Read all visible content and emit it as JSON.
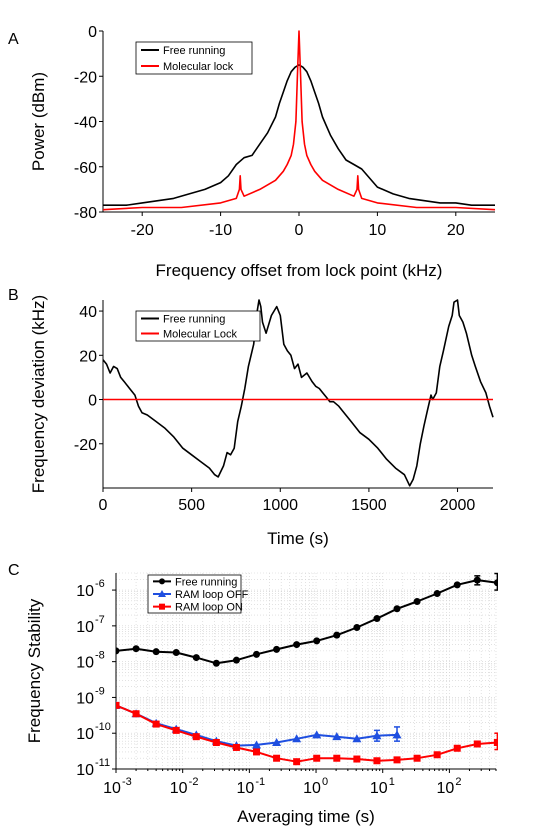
{
  "colors": {
    "free": "#000000",
    "lock": "#ff0000",
    "ram_off": "#1f4fe0",
    "ram_on": "#ff0000",
    "grid": "#d0d0d0"
  },
  "chart_data": [
    {
      "panel_label": "A",
      "type": "line",
      "xlabel": "Frequency offset from lock point (kHz)",
      "ylabel": "Power (dBm)",
      "xlim": [
        -25,
        25
      ],
      "ylim": [
        -80,
        0
      ],
      "xticks": [
        -20,
        -10,
        0,
        10,
        20
      ],
      "xtick_labels": [
        "-20",
        "-10",
        "0",
        "10",
        "20"
      ],
      "yticks": [
        0,
        -20,
        -40,
        -60,
        -80
      ],
      "ytick_labels": [
        "0",
        "-20",
        "-40",
        "-60",
        "-80"
      ],
      "legend": "top-left",
      "grid": false,
      "series": [
        {
          "name": "Free running",
          "color_key": "free",
          "x": [
            -25,
            -22,
            -20,
            -18,
            -16,
            -14,
            -12,
            -10,
            -9,
            -8,
            -7,
            -6,
            -5,
            -4,
            -3,
            -2.5,
            -2,
            -1.5,
            -1,
            -0.5,
            0,
            0.5,
            1,
            1.5,
            2,
            2.5,
            3,
            4,
            5,
            6,
            7,
            8,
            9,
            10,
            12,
            14,
            16,
            18,
            20,
            22,
            25
          ],
          "y": [
            -77,
            -77,
            -76,
            -75,
            -74,
            -72,
            -70,
            -67,
            -64,
            -59,
            -56,
            -55,
            -50,
            -45,
            -38,
            -32,
            -27,
            -22,
            -18,
            -16,
            -15,
            -16,
            -18,
            -22,
            -27,
            -32,
            -38,
            -46,
            -52,
            -57,
            -59,
            -61,
            -65,
            -69,
            -72,
            -74,
            -75,
            -76,
            -76,
            -77,
            -77
          ]
        },
        {
          "name": "Molecular lock",
          "color_key": "lock",
          "x": [
            -25,
            -20,
            -15,
            -10,
            -8,
            -7.6,
            -7.5,
            -7.4,
            -7,
            -5,
            -3,
            -2,
            -1.5,
            -1,
            -0.7,
            -0.4,
            -0.2,
            0,
            0.2,
            0.4,
            0.7,
            1,
            1.5,
            2,
            3,
            5,
            7,
            7.4,
            7.5,
            7.6,
            8,
            10,
            15,
            20,
            25
          ],
          "y": [
            -79,
            -78,
            -78,
            -76,
            -74,
            -70,
            -64,
            -70,
            -73,
            -70,
            -66,
            -62,
            -59,
            -55,
            -50,
            -40,
            -20,
            0,
            -20,
            -40,
            -50,
            -55,
            -59,
            -62,
            -66,
            -70,
            -73,
            -70,
            -64,
            -70,
            -74,
            -76,
            -78,
            -78,
            -79
          ]
        }
      ]
    },
    {
      "panel_label": "B",
      "type": "line",
      "xlabel": "Time (s)",
      "ylabel": "Frequency deviation (kHz)",
      "xlim": [
        0,
        2200
      ],
      "ylim": [
        -40,
        45
      ],
      "xticks": [
        0,
        500,
        1000,
        1500,
        2000
      ],
      "xtick_labels": [
        "0",
        "500",
        "1000",
        "1500",
        "2000"
      ],
      "yticks": [
        40,
        20,
        0,
        -20
      ],
      "ytick_labels": [
        "40",
        "20",
        "0",
        "-20"
      ],
      "legend": "top-left",
      "grid": false,
      "series": [
        {
          "name": "Free running",
          "color_key": "free",
          "x": [
            0,
            20,
            40,
            60,
            80,
            100,
            120,
            150,
            180,
            200,
            220,
            250,
            300,
            350,
            400,
            450,
            500,
            550,
            600,
            630,
            650,
            680,
            700,
            720,
            740,
            760,
            780,
            800,
            820,
            850,
            870,
            880,
            890,
            900,
            920,
            950,
            980,
            1000,
            1020,
            1040,
            1060,
            1080,
            1100,
            1120,
            1150,
            1180,
            1200,
            1220,
            1240,
            1260,
            1280,
            1300,
            1330,
            1350,
            1400,
            1450,
            1500,
            1550,
            1600,
            1650,
            1700,
            1730,
            1750,
            1770,
            1790,
            1810,
            1830,
            1850,
            1860,
            1880,
            1900,
            1920,
            1950,
            1970,
            1980,
            2000,
            2010,
            2030,
            2050,
            2080,
            2100,
            2130,
            2160,
            2180,
            2200
          ],
          "y": [
            18,
            16,
            12,
            15,
            14,
            10,
            8,
            5,
            2,
            -3,
            -6,
            -7,
            -10,
            -13,
            -17,
            -22,
            -25,
            -28,
            -31,
            -34,
            -35,
            -30,
            -24,
            -25,
            -22,
            -10,
            -3,
            5,
            15,
            25,
            40,
            45,
            42,
            35,
            30,
            38,
            42,
            38,
            25,
            22,
            20,
            14,
            16,
            10,
            12,
            8,
            6,
            5,
            3,
            1,
            -1,
            -1,
            -3,
            -5,
            -10,
            -15,
            -18,
            -22,
            -27,
            -31,
            -34,
            -39,
            -36,
            -30,
            -20,
            -12,
            -5,
            2,
            0,
            3,
            15,
            22,
            33,
            38,
            44,
            45,
            38,
            35,
            30,
            20,
            15,
            8,
            3,
            -3,
            -8
          ]
        },
        {
          "name": "Molecular Lock",
          "color_key": "lock",
          "x": [
            0,
            2200
          ],
          "y": [
            0,
            0
          ]
        }
      ]
    },
    {
      "panel_label": "C",
      "type": "scatter",
      "xlabel": "Averaging time (s)",
      "ylabel": "Frequency Stability",
      "xscale": "log",
      "yscale": "log",
      "xlim": [
        0.001,
        500
      ],
      "ylim": [
        1e-11,
        3e-06
      ],
      "xticks": [
        0.001,
        0.01,
        0.1,
        1,
        10,
        100
      ],
      "xtick_labels": [
        "10",
        "10",
        "10",
        "10",
        "10",
        "10"
      ],
      "xtick_exponents": [
        "-3",
        "-2",
        "-1",
        "0",
        "1",
        "2"
      ],
      "yticks": [
        1e-06,
        1e-07,
        1e-08,
        1e-09,
        1e-10,
        1e-11
      ],
      "ytick_labels": [
        "10",
        "10",
        "10",
        "10",
        "10",
        "10"
      ],
      "ytick_exponents": [
        "-6",
        "-7",
        "-8",
        "-9",
        "-10",
        "-11"
      ],
      "legend": "top-left",
      "grid": true,
      "series": [
        {
          "name": "Free running",
          "color_key": "free",
          "marker": "circle",
          "x": [
            0.001,
            0.002,
            0.004,
            0.008,
            0.016,
            0.032,
            0.064,
            0.128,
            0.256,
            0.512,
            1.024,
            2.048,
            4.096,
            8.192,
            16.384,
            32.768,
            65.536,
            131.07,
            262.14,
            524.29
          ],
          "y": [
            2e-08,
            2.3e-08,
            1.9e-08,
            1.8e-08,
            1.3e-08,
            9e-09,
            1.1e-08,
            1.6e-08,
            2.2e-08,
            3e-08,
            3.8e-08,
            5.5e-08,
            9e-08,
            1.6e-07,
            3e-07,
            4.8e-07,
            8e-07,
            1.4e-06,
            1.9e-06,
            1.6e-06
          ],
          "err_x": [
            262.14,
            524.29
          ],
          "err_lo": [
            1.4e-06,
            1e-06
          ],
          "err_hi": [
            2.5e-06,
            2.9e-06
          ]
        },
        {
          "name": "RAM loop OFF",
          "color_key": "ram_off",
          "marker": "triangle",
          "x": [
            0.001,
            0.002,
            0.004,
            0.008,
            0.016,
            0.032,
            0.064,
            0.128,
            0.256,
            0.512,
            1.024,
            2.048,
            4.096,
            8.192,
            16.384
          ],
          "y": [
            6e-10,
            3.5e-10,
            1.9e-10,
            1.3e-10,
            9e-11,
            6e-11,
            4.5e-11,
            4.7e-11,
            5.5e-11,
            7e-11,
            9e-11,
            8e-11,
            7e-11,
            8.5e-11,
            9e-11
          ],
          "err_x": [
            8.192,
            16.384
          ],
          "err_lo": [
            6e-11,
            6e-11
          ],
          "err_hi": [
            1.2e-10,
            1.5e-10
          ]
        },
        {
          "name": "RAM loop ON",
          "color_key": "ram_on",
          "marker": "square",
          "x": [
            0.001,
            0.002,
            0.004,
            0.008,
            0.016,
            0.032,
            0.064,
            0.128,
            0.256,
            0.512,
            1.024,
            2.048,
            4.096,
            8.192,
            16.384,
            32.768,
            65.536,
            131.07,
            262.14,
            524.29
          ],
          "y": [
            6e-10,
            3.5e-10,
            1.8e-10,
            1.2e-10,
            8e-11,
            5.5e-11,
            4e-11,
            3e-11,
            2e-11,
            1.6e-11,
            2e-11,
            2e-11,
            1.9e-11,
            1.7e-11,
            1.8e-11,
            2e-11,
            2.5e-11,
            3.8e-11,
            5e-11,
            5.5e-11
          ],
          "err_x": [
            524.29
          ],
          "err_lo": [
            3.5e-11
          ],
          "err_hi": [
            1e-10
          ]
        }
      ]
    }
  ]
}
